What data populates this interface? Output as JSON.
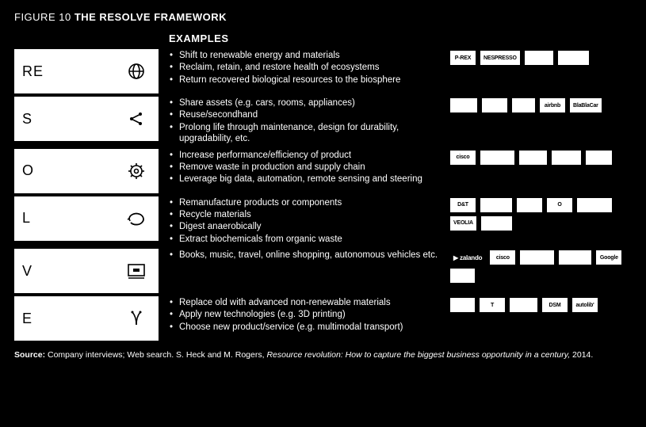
{
  "figure": {
    "num": "FIGURE 10",
    "title": "THE RESOLVE FRAMEWORK"
  },
  "examples_header": "EXAMPLES",
  "rows": [
    {
      "letter": "RE",
      "icon": "globe",
      "bullets": [
        "Shift to renewable energy and materials",
        "Reclaim, retain, and restore health of ecosystems",
        "Return recovered biological resources to the biosphere"
      ],
      "logos": [
        "P-REX",
        "NESPRESSO",
        "",
        ""
      ]
    },
    {
      "letter": "S",
      "icon": "share",
      "bullets": [
        "Share assets (e.g. cars, rooms, appliances)",
        "Reuse/secondhand",
        "Prolong life through maintenance, design for durability, upgradability, etc."
      ],
      "logos": [
        "",
        "",
        "",
        "airbnb",
        "BlaBlaCar"
      ]
    },
    {
      "letter": "O",
      "icon": "cog",
      "bullets": [
        "Increase performance/efficiency of product",
        "Remove waste in production and supply chain",
        "Leverage big data, automation, remote sensing and steering"
      ],
      "logos": [
        "cisco",
        "",
        "",
        "",
        ""
      ]
    },
    {
      "letter": "L",
      "icon": "loop",
      "bullets": [
        "Remanufacture products or components",
        "Recycle materials",
        "Digest anaerobically",
        "Extract biochemicals from organic waste"
      ],
      "logos": [
        "D&T",
        "",
        "",
        "O",
        "",
        "VEOLIA",
        ""
      ]
    },
    {
      "letter": "V",
      "icon": "screen",
      "bullets": [
        "Books, music, travel, online shopping, autonomous vehicles etc."
      ],
      "logos": [
        "▶ zalando",
        "cisco",
        "",
        "",
        "Google",
        ""
      ]
    },
    {
      "letter": "E",
      "icon": "exchange",
      "bullets": [
        "Replace old with advanced non-renewable materials",
        "Apply new technologies (e.g. 3D printing)",
        "Choose new product/service (e.g. multimodal transport)"
      ],
      "logos": [
        "",
        "T",
        "",
        "DSM",
        "autolib'"
      ]
    }
  ],
  "source": {
    "label": "Source:",
    "text": " Company interviews; Web search. S. Heck and M. Rogers, ",
    "italic": "Resource revolution: How to capture the biggest business opportunity in a century,",
    "tail": " 2014."
  },
  "colors": {
    "bg": "#000000",
    "fg": "#ffffff",
    "box_bg": "#ffffff",
    "box_fg": "#000000"
  }
}
